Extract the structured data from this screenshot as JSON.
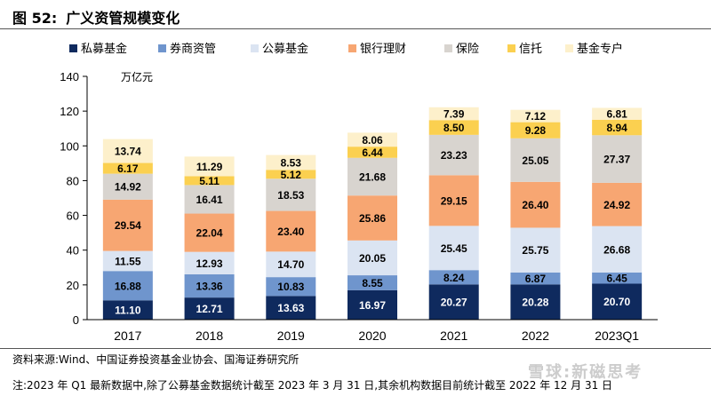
{
  "header": {
    "figure_number": "图 52:",
    "title": "广义资管规模变化"
  },
  "footer": {
    "source": "资料来源:Wind、中国证券投资基金业协会、国海证券研究所",
    "note": "注:2023 年 Q1 最新数据中,除了公募基金数据统计截至 2023 年 3 月 31 日,其余机构数据目前统计截至 2022 年 12 月 31 日",
    "watermark": "雪球:新磁思考"
  },
  "chart_data": {
    "type": "bar",
    "stacked": true,
    "title": "广义资管规模变化",
    "unit": "万亿元",
    "categories": [
      "2017",
      "2018",
      "2019",
      "2020",
      "2021",
      "2022",
      "2023Q1"
    ],
    "ylim": [
      0,
      140
    ],
    "yticks": [
      "0",
      "20",
      "40",
      "60",
      "80",
      "100",
      "120",
      "140"
    ],
    "grid": false,
    "legend_position": "top",
    "series": [
      {
        "name": "私募基金",
        "color": "#0f2a5e",
        "label_color": "#ffffff",
        "values": [
          11.1,
          12.71,
          13.63,
          16.97,
          20.27,
          20.28,
          20.7
        ]
      },
      {
        "name": "券商资管",
        "color": "#6f95cd",
        "label_color": "#000000",
        "values": [
          16.88,
          13.36,
          10.83,
          8.55,
          8.24,
          6.87,
          6.45
        ]
      },
      {
        "name": "公募基金",
        "color": "#dbe4f2",
        "label_color": "#000000",
        "values": [
          11.55,
          12.93,
          14.7,
          20.05,
          25.45,
          25.75,
          26.68
        ]
      },
      {
        "name": "银行理财",
        "color": "#f7a672",
        "label_color": "#000000",
        "values": [
          29.54,
          22.04,
          23.4,
          25.86,
          29.15,
          26.4,
          24.92
        ]
      },
      {
        "name": "保险",
        "color": "#d8d4cf",
        "label_color": "#000000",
        "values": [
          14.92,
          16.41,
          18.53,
          21.68,
          23.23,
          25.05,
          27.37
        ]
      },
      {
        "name": "信托",
        "color": "#fbd050",
        "label_color": "#000000",
        "values": [
          6.17,
          5.11,
          5.12,
          6.44,
          8.5,
          9.28,
          8.94
        ]
      },
      {
        "name": "基金专户",
        "color": "#fdf0cb",
        "label_color": "#000000",
        "values": [
          13.74,
          11.29,
          8.53,
          8.06,
          7.39,
          7.12,
          6.81
        ]
      }
    ],
    "value_labels": [
      [
        "11.10",
        "12.71",
        "13.63",
        "16.97",
        "20.27",
        "20.28",
        "20.70"
      ],
      [
        "16.88",
        "13.36",
        "10.83",
        "8.55",
        "8.24",
        "6.87",
        "6.45"
      ],
      [
        "11.55",
        "12.93",
        "14.70",
        "20.05",
        "25.45",
        "25.75",
        "26.68"
      ],
      [
        "29.54",
        "22.04",
        "23.40",
        "25.86",
        "29.15",
        "26.40",
        "24.92"
      ],
      [
        "14.92",
        "16.41",
        "18.53",
        "21.68",
        "23.23",
        "25.05",
        "27.37"
      ],
      [
        "6.17",
        "5.11",
        "5.12",
        "6.44",
        "8.50",
        "9.28",
        "8.94"
      ],
      [
        "13.74",
        "11.29",
        "8.53",
        "8.06",
        "7.39",
        "7.12",
        "6.81"
      ]
    ]
  }
}
